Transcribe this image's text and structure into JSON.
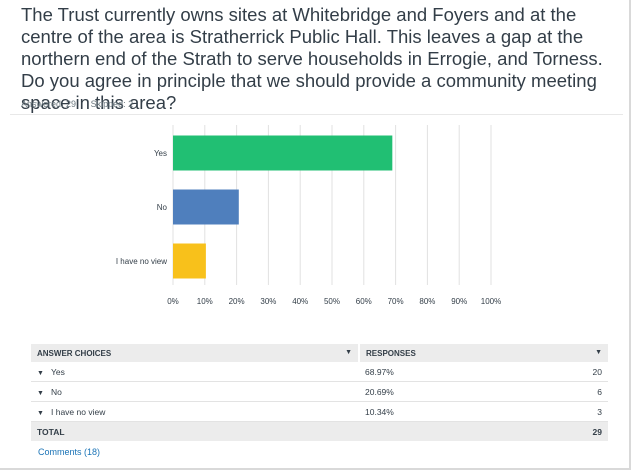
{
  "question": "The Trust currently owns sites at Whitebridge and Foyers and at the centre of the area is Stratherrick Public Hall. This leaves a gap at the northern end of the Strath to serve households in Errogie, and Torness. Do you agree in principle that we should provide a community meeting space in this area?",
  "stats": {
    "answered": "Answered: 29",
    "skipped": "Skipped: 2"
  },
  "colors": {
    "yes": "#21bf73",
    "no": "#4f7fbd",
    "no_view": "#f8c11b",
    "grid": "#e1e1e1"
  },
  "chart_data": {
    "type": "bar",
    "orientation": "horizontal",
    "categories": [
      "Yes",
      "No",
      "I have no view"
    ],
    "values": [
      68.97,
      20.69,
      10.34
    ],
    "xlim": [
      0,
      100
    ],
    "xticks": [
      "0%",
      "10%",
      "20%",
      "30%",
      "40%",
      "50%",
      "60%",
      "70%",
      "80%",
      "90%",
      "100%"
    ],
    "grid": true
  },
  "table": {
    "headers": {
      "choices": "ANSWER CHOICES",
      "responses": "RESPONSES"
    },
    "rows": [
      {
        "label": "Yes",
        "percent": "68.97%",
        "count": "20"
      },
      {
        "label": "No",
        "percent": "20.69%",
        "count": "6"
      },
      {
        "label": "I have no view",
        "percent": "10.34%",
        "count": "3"
      }
    ],
    "total": {
      "label": "TOTAL",
      "count": "29"
    }
  },
  "comments": "Comments (18)"
}
